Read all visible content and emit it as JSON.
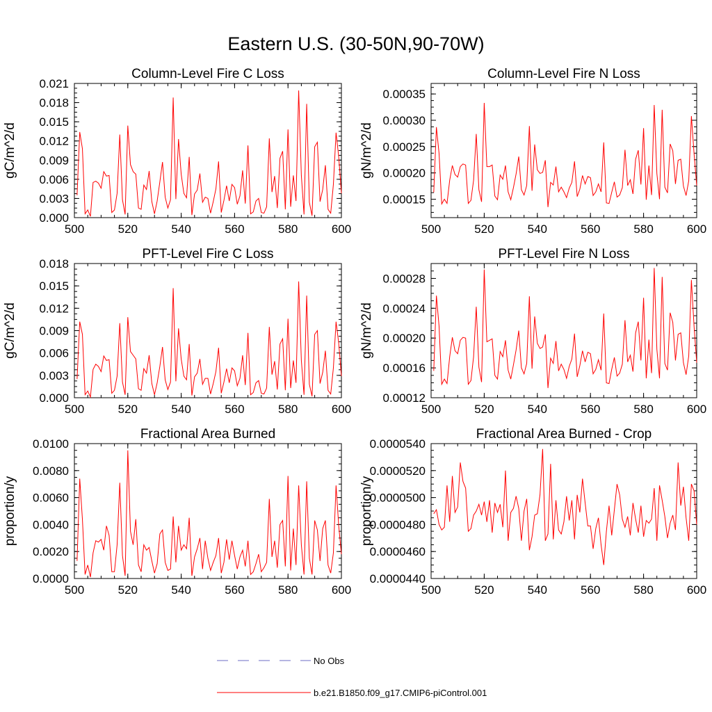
{
  "figure": {
    "title": "Eastern U.S. (30-50N,90-70W)"
  },
  "legend": [
    {
      "label": "No Obs",
      "color": "#6b6bc4",
      "dash": true
    },
    {
      "label": "b.e21.B1850.f09_g17.CMIP6-piControl.001",
      "color": "#ff0000",
      "dash": false
    }
  ],
  "chart_data": [
    {
      "type": "line",
      "title": "Column-Level Fire C Loss",
      "xlabel": "",
      "ylabel": "gC/m^2/d",
      "xlim": [
        500,
        600
      ],
      "ylim": [
        0,
        0.021
      ],
      "xticks": [
        500,
        520,
        540,
        560,
        580,
        600
      ],
      "yticks": [
        0,
        0.003,
        0.006,
        0.009,
        0.012,
        0.015,
        0.018,
        0.021
      ],
      "ytick_labels": [
        "0.000",
        "0.003",
        "0.006",
        "0.009",
        "0.012",
        "0.015",
        "0.018",
        "0.021"
      ],
      "x_start": 501,
      "grid": false,
      "series": [
        {
          "color": "#ff0000",
          "values": [
            0.0035,
            0.0134,
            0.0108,
            0.0006,
            0.0012,
            0.0002,
            0.0055,
            0.0057,
            0.0054,
            0.0046,
            0.0072,
            0.0065,
            0.0066,
            0.0008,
            0.0012,
            0.0038,
            0.013,
            0.0028,
            0.0005,
            0.0144,
            0.0083,
            0.0072,
            0.0068,
            0.0015,
            0.0013,
            0.0051,
            0.0044,
            0.0073,
            0.0025,
            0.0006,
            0.0026,
            0.0056,
            0.0087,
            0.0032,
            0.0015,
            0.0028,
            0.0188,
            0.0029,
            0.0123,
            0.0068,
            0.0038,
            0.0031,
            0.0095,
            0.0004,
            0.0037,
            0.0043,
            0.0069,
            0.0024,
            0.0032,
            0.003,
            0.0007,
            0.0025,
            0.0045,
            0.0088,
            0.0008,
            0.0027,
            0.005,
            0.0026,
            0.0052,
            0.0047,
            0.0021,
            0.0034,
            0.0074,
            0.0022,
            0.0113,
            0.0006,
            0.0009,
            0.0026,
            0.003,
            0.0008,
            0.0007,
            0.0017,
            0.0124,
            0.004,
            0.0065,
            0.0015,
            0.0093,
            0.0104,
            0.0013,
            0.0138,
            0.0017,
            0.0066,
            0.0026,
            0.0199,
            0.0066,
            0.0005,
            0.0178,
            0.0024,
            0.0003,
            0.0111,
            0.0118,
            0.0025,
            0.0044,
            0.0082,
            0.0013,
            0.0007,
            0.0052,
            0.0133,
            0.0095,
            0.0038
          ]
        }
      ]
    },
    {
      "type": "line",
      "title": "Column-Level Fire N Loss",
      "xlabel": "",
      "ylabel": "gN/m^2/d",
      "xlim": [
        500,
        600
      ],
      "ylim": [
        0.000115,
        0.00037
      ],
      "xticks": [
        500,
        520,
        540,
        560,
        580,
        600
      ],
      "yticks": [
        0.00015,
        0.0002,
        0.00025,
        0.0003,
        0.00035
      ],
      "ytick_labels": [
        "0.00015",
        "0.00020",
        "0.00025",
        "0.00030",
        "0.00035"
      ],
      "x_start": 501,
      "grid": false,
      "series": [
        {
          "color": "#ff0000",
          "values": [
            0.000163,
            0.000287,
            0.000237,
            0.000141,
            0.00015,
            0.000142,
            0.000186,
            0.000214,
            0.000197,
            0.000192,
            0.000212,
            0.000217,
            0.000215,
            0.000142,
            0.000148,
            0.000186,
            0.000274,
            0.000168,
            0.000145,
            0.000333,
            0.000212,
            0.000212,
            0.000215,
            0.000156,
            0.000149,
            0.000196,
            0.000188,
            0.000214,
            0.000164,
            0.000149,
            0.000172,
            0.000198,
            0.000231,
            0.000168,
            0.000158,
            0.000176,
            0.000289,
            0.000166,
            0.000254,
            0.000206,
            0.000199,
            0.000201,
            0.000224,
            0.000135,
            0.000182,
            0.000177,
            0.000212,
            0.000164,
            0.000173,
            0.000164,
            0.000153,
            0.000171,
            0.000182,
            0.000222,
            0.000155,
            0.000169,
            0.000195,
            0.000179,
            0.000193,
            0.000191,
            0.000157,
            0.000164,
            0.000179,
            0.000164,
            0.000258,
            0.000143,
            0.000142,
            0.000163,
            0.000183,
            0.000154,
            0.000158,
            0.000172,
            0.000244,
            0.000176,
            0.000187,
            0.00016,
            0.000226,
            0.000243,
            0.000178,
            0.000285,
            0.000149,
            0.000214,
            0.000158,
            0.000329,
            0.000199,
            0.00015,
            0.00032,
            0.000173,
            0.000162,
            0.000255,
            0.000242,
            0.000179,
            0.000224,
            0.000226,
            0.000175,
            0.000157,
            0.000185,
            0.000308,
            0.000237,
            0.000176
          ]
        }
      ]
    },
    {
      "type": "line",
      "title": "PFT-Level Fire C Loss",
      "xlabel": "",
      "ylabel": "gC/m^2/d",
      "xlim": [
        500,
        600
      ],
      "ylim": [
        0,
        0.018
      ],
      "xticks": [
        500,
        520,
        540,
        560,
        580,
        600
      ],
      "yticks": [
        0,
        0.003,
        0.006,
        0.009,
        0.012,
        0.015,
        0.018
      ],
      "ytick_labels": [
        "0.000",
        "0.003",
        "0.006",
        "0.009",
        "0.012",
        "0.015",
        "0.018"
      ],
      "x_start": 501,
      "grid": false,
      "series": [
        {
          "color": "#ff0000",
          "values": [
            0.0025,
            0.0102,
            0.0085,
            0.0004,
            0.0009,
            0.0001,
            0.0038,
            0.0045,
            0.0042,
            0.0035,
            0.0056,
            0.005,
            0.0051,
            0.0006,
            0.001,
            0.0029,
            0.01,
            0.0021,
            0.0004,
            0.0108,
            0.0062,
            0.0057,
            0.0052,
            0.0012,
            0.001,
            0.0039,
            0.0033,
            0.0057,
            0.0019,
            0.0004,
            0.002,
            0.0042,
            0.0068,
            0.0024,
            0.0011,
            0.0021,
            0.0147,
            0.0022,
            0.0093,
            0.0052,
            0.0029,
            0.0024,
            0.0072,
            0.0003,
            0.0028,
            0.0033,
            0.0052,
            0.0018,
            0.0026,
            0.0026,
            0.0005,
            0.0019,
            0.0035,
            0.0067,
            0.0006,
            0.0021,
            0.0039,
            0.002,
            0.004,
            0.0036,
            0.0016,
            0.0026,
            0.0057,
            0.0017,
            0.0087,
            0.0004,
            0.0007,
            0.002,
            0.0023,
            0.0006,
            0.0005,
            0.0013,
            0.0095,
            0.0031,
            0.0049,
            0.0011,
            0.0072,
            0.0079,
            0.001,
            0.0106,
            0.0013,
            0.005,
            0.002,
            0.0156,
            0.005,
            0.0004,
            0.0137,
            0.0018,
            0.0002,
            0.0085,
            0.009,
            0.0019,
            0.0034,
            0.0063,
            0.001,
            0.0005,
            0.004,
            0.0102,
            0.0073,
            0.0029
          ]
        }
      ]
    },
    {
      "type": "line",
      "title": "PFT-Level Fire N Loss",
      "xlabel": "",
      "ylabel": "gN/m^2/d",
      "xlim": [
        500,
        600
      ],
      "ylim": [
        0.00012,
        0.0003
      ],
      "xticks": [
        500,
        520,
        540,
        560,
        580,
        600
      ],
      "yticks": [
        0.00012,
        0.00016,
        0.0002,
        0.00024,
        0.00028
      ],
      "ytick_labels": [
        "0.00012",
        "0.00016",
        "0.00020",
        "0.00024",
        "0.00028"
      ],
      "x_start": 501,
      "grid": false,
      "series": [
        {
          "color": "#ff0000",
          "values": [
            0.000156,
            0.000257,
            0.000216,
            0.000138,
            0.000145,
            0.000139,
            0.000175,
            0.000201,
            0.000183,
            0.000179,
            0.000197,
            0.000201,
            0.0002,
            0.000138,
            0.000143,
            0.000175,
            0.000242,
            0.000161,
            0.000141,
            0.000292,
            0.000195,
            0.000197,
            0.000199,
            0.00015,
            0.000145,
            0.000182,
            0.000175,
            0.000197,
            0.000157,
            0.000145,
            0.000164,
            0.000184,
            0.00021,
            0.00016,
            0.000152,
            0.000166,
            0.000256,
            0.000159,
            0.000229,
            0.000193,
            0.000186,
            0.000188,
            0.000205,
            0.000133,
            0.000173,
            0.000166,
            0.000196,
            0.000156,
            0.000165,
            0.000158,
            0.000146,
            0.000162,
            0.000172,
            0.000206,
            0.000148,
            0.000163,
            0.000183,
            0.000168,
            0.000181,
            0.000179,
            0.000152,
            0.000158,
            0.000171,
            0.000157,
            0.000233,
            0.00014,
            0.000139,
            0.000158,
            0.000174,
            0.000149,
            0.000153,
            0.000165,
            0.000224,
            0.000168,
            0.000177,
            0.000155,
            0.000207,
            0.000222,
            0.00017,
            0.000254,
            0.000146,
            0.000198,
            0.000153,
            0.000294,
            0.000185,
            0.000146,
            0.000282,
            0.000166,
            0.000157,
            0.000234,
            0.000221,
            0.00017,
            0.000205,
            0.000207,
            0.000167,
            0.000151,
            0.000176,
            0.000278,
            0.000216,
            0.000167
          ]
        }
      ]
    },
    {
      "type": "line",
      "title": "Fractional Area Burned",
      "xlabel": "",
      "ylabel": "proportion/y",
      "xlim": [
        500,
        600
      ],
      "ylim": [
        0,
        0.01
      ],
      "xticks": [
        500,
        520,
        540,
        560,
        580,
        600
      ],
      "yticks": [
        0,
        0.002,
        0.004,
        0.006,
        0.008,
        0.01
      ],
      "ytick_labels": [
        "0.0000",
        "0.0020",
        "0.0040",
        "0.0060",
        "0.0080",
        "0.0100"
      ],
      "x_start": 501,
      "grid": false,
      "series": [
        {
          "color": "#ff0000",
          "values": [
            0.0013,
            0.0074,
            0.0044,
            0.0003,
            0.001,
            0.0001,
            0.0019,
            0.0028,
            0.0027,
            0.0029,
            0.0021,
            0.0039,
            0.0032,
            0.0005,
            0.0005,
            0.0025,
            0.0071,
            0.0017,
            0.0002,
            0.0095,
            0.0035,
            0.0025,
            0.0044,
            0.001,
            0.0005,
            0.0025,
            0.0021,
            0.0023,
            0.0013,
            0.0004,
            0.0011,
            0.0033,
            0.0036,
            0.0012,
            0.0006,
            0.0007,
            0.0046,
            0.0012,
            0.0039,
            0.0021,
            0.0025,
            0.0022,
            0.0045,
            0.0002,
            0.0016,
            0.0022,
            0.003,
            0.0007,
            0.0028,
            0.0015,
            0.0006,
            0.0012,
            0.0017,
            0.003,
            0.0004,
            0.0012,
            0.0029,
            0.0014,
            0.0028,
            0.0017,
            0.0007,
            0.0016,
            0.0021,
            0.0009,
            0.0028,
            0.0003,
            0.0005,
            0.0011,
            0.0018,
            0.0005,
            0.0008,
            0.0012,
            0.0059,
            0.0016,
            0.0028,
            0.0008,
            0.004,
            0.0043,
            0.0009,
            0.0076,
            0.0006,
            0.0037,
            0.001,
            0.0069,
            0.0025,
            0.0003,
            0.0072,
            0.0015,
            0.0003,
            0.0043,
            0.0036,
            0.0013,
            0.0037,
            0.0043,
            0.001,
            0.0004,
            0.0019,
            0.0069,
            0.0039,
            0.0018
          ]
        }
      ]
    },
    {
      "type": "line",
      "title": "Fractional Area Burned - Crop",
      "xlabel": "",
      "ylabel": "proportion/y",
      "xlim": [
        500,
        600
      ],
      "ylim": [
        4.4e-05,
        5.4e-05
      ],
      "xticks": [
        500,
        520,
        540,
        560,
        580,
        600
      ],
      "yticks": [
        4.4e-05,
        4.6e-05,
        4.8e-05,
        5e-05,
        5.2e-05,
        5.4e-05
      ],
      "ytick_labels": [
        "0.0000440",
        "0.0000460",
        "0.0000480",
        "0.0000500",
        "0.0000520",
        "0.0000540"
      ],
      "x_start": 501,
      "grid": false,
      "series": [
        {
          "color": "#ff0000",
          "values": [
            4.88e-05,
            4.91e-05,
            4.8e-05,
            4.76e-05,
            4.78e-05,
            5.09e-05,
            4.82e-05,
            5.16e-05,
            4.89e-05,
            4.93e-05,
            5.26e-05,
            5.12e-05,
            5.07e-05,
            4.75e-05,
            4.77e-05,
            4.87e-05,
            4.9e-05,
            4.95e-05,
            4.87e-05,
            4.97e-05,
            4.82e-05,
            4.98e-05,
            4.74e-05,
            4.96e-05,
            4.89e-05,
            4.95e-05,
            4.78e-05,
            5.2e-05,
            4.68e-05,
            4.89e-05,
            4.92e-05,
            5.01e-05,
            4.92e-05,
            4.68e-05,
            4.9e-05,
            4.99e-05,
            4.61e-05,
            4.71e-05,
            4.87e-05,
            4.88e-05,
            5.02e-05,
            5.36e-05,
            4.68e-05,
            4.73e-05,
            5.25e-05,
            4.69e-05,
            4.98e-05,
            4.76e-05,
            4.73e-05,
            4.82e-05,
            5.01e-05,
            4.83e-05,
            4.98e-05,
            4.69e-05,
            5.02e-05,
            4.89e-05,
            5.14e-05,
            4.96e-05,
            4.79e-05,
            4.79e-05,
            4.62e-05,
            4.77e-05,
            4.85e-05,
            4.65e-05,
            4.5e-05,
            4.75e-05,
            4.94e-05,
            4.72e-05,
            4.91e-05,
            5.1e-05,
            5.02e-05,
            4.84e-05,
            4.78e-05,
            4.86e-05,
            4.72e-05,
            4.96e-05,
            4.84e-05,
            4.74e-05,
            4.94e-05,
            4.71e-05,
            4.83e-05,
            4.81e-05,
            4.84e-05,
            5.07e-05,
            4.68e-05,
            5.09e-05,
            4.98e-05,
            4.86e-05,
            4.7e-05,
            4.81e-05,
            4.87e-05,
            4.76e-05,
            5.26e-05,
            4.94e-05,
            5.08e-05,
            4.85e-05,
            4.68e-05,
            5.1e-05,
            5.05e-05,
            4.8e-05
          ]
        }
      ]
    }
  ]
}
